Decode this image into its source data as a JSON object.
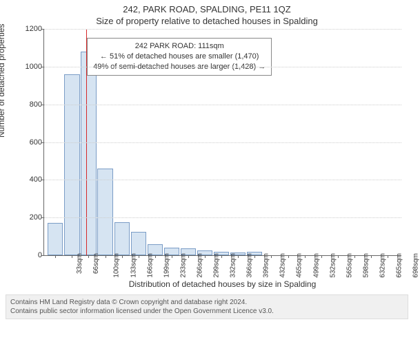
{
  "titles": {
    "address": "242, PARK ROAD, SPALDING, PE11 1QZ",
    "subtitle": "Size of property relative to detached houses in Spalding"
  },
  "yaxis": {
    "label": "Number of detached properties",
    "min": 0,
    "max": 1200,
    "ticks": [
      0,
      200,
      400,
      600,
      800,
      1000,
      1200
    ]
  },
  "xaxis": {
    "label": "Distribution of detached houses by size in Spalding",
    "categories": [
      "33sqm",
      "66sqm",
      "100sqm",
      "133sqm",
      "166sqm",
      "199sqm",
      "233sqm",
      "266sqm",
      "299sqm",
      "332sqm",
      "366sqm",
      "399sqm",
      "432sqm",
      "465sqm",
      "499sqm",
      "532sqm",
      "565sqm",
      "598sqm",
      "632sqm",
      "665sqm",
      "698sqm"
    ],
    "values": [
      170,
      960,
      1080,
      460,
      175,
      125,
      60,
      40,
      38,
      25,
      20,
      15,
      18,
      0,
      0,
      0,
      0,
      0,
      0,
      0,
      0
    ]
  },
  "marker": {
    "position_sqm_index_ratio": 0.115,
    "color": "#d62728"
  },
  "infobox": {
    "line1": "242 PARK ROAD: 111sqm",
    "line2": "← 51% of detached houses are smaller (1,470)",
    "line3": "49% of semi-detached houses are larger (1,428) →",
    "left_pct": 12,
    "top_pct": 4,
    "border_color": "#888888"
  },
  "style": {
    "bar_fill": "#d6e4f2",
    "bar_border": "#7a9cc6",
    "bar_width_pct": 4.3,
    "gap_pct": 0.35,
    "grid_color": "#cccccc",
    "axis_color": "#666666",
    "background": "#ffffff"
  },
  "footer": {
    "line1": "Contains HM Land Registry data © Crown copyright and database right 2024.",
    "line2": "Contains public sector information licensed under the Open Government Licence v3.0."
  }
}
